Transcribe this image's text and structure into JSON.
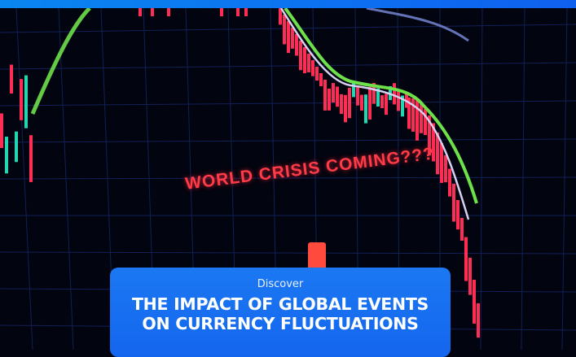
{
  "background": {
    "description_text": "WORLD CRISIS COMING???",
    "colors": {
      "background": "#02040f",
      "grid": "#1a2a66",
      "bear": "#ff2d55",
      "bull": "#21d6b0",
      "ma_green": "#6de04a",
      "ma_white": "#d8d0f0"
    }
  },
  "card": {
    "kicker": "Discover",
    "title_line1": "THE IMPACT OF GLOBAL EVENTS",
    "title_line2": "ON CURRENCY FLUCTUATIONS",
    "color": "#1a73f0"
  }
}
